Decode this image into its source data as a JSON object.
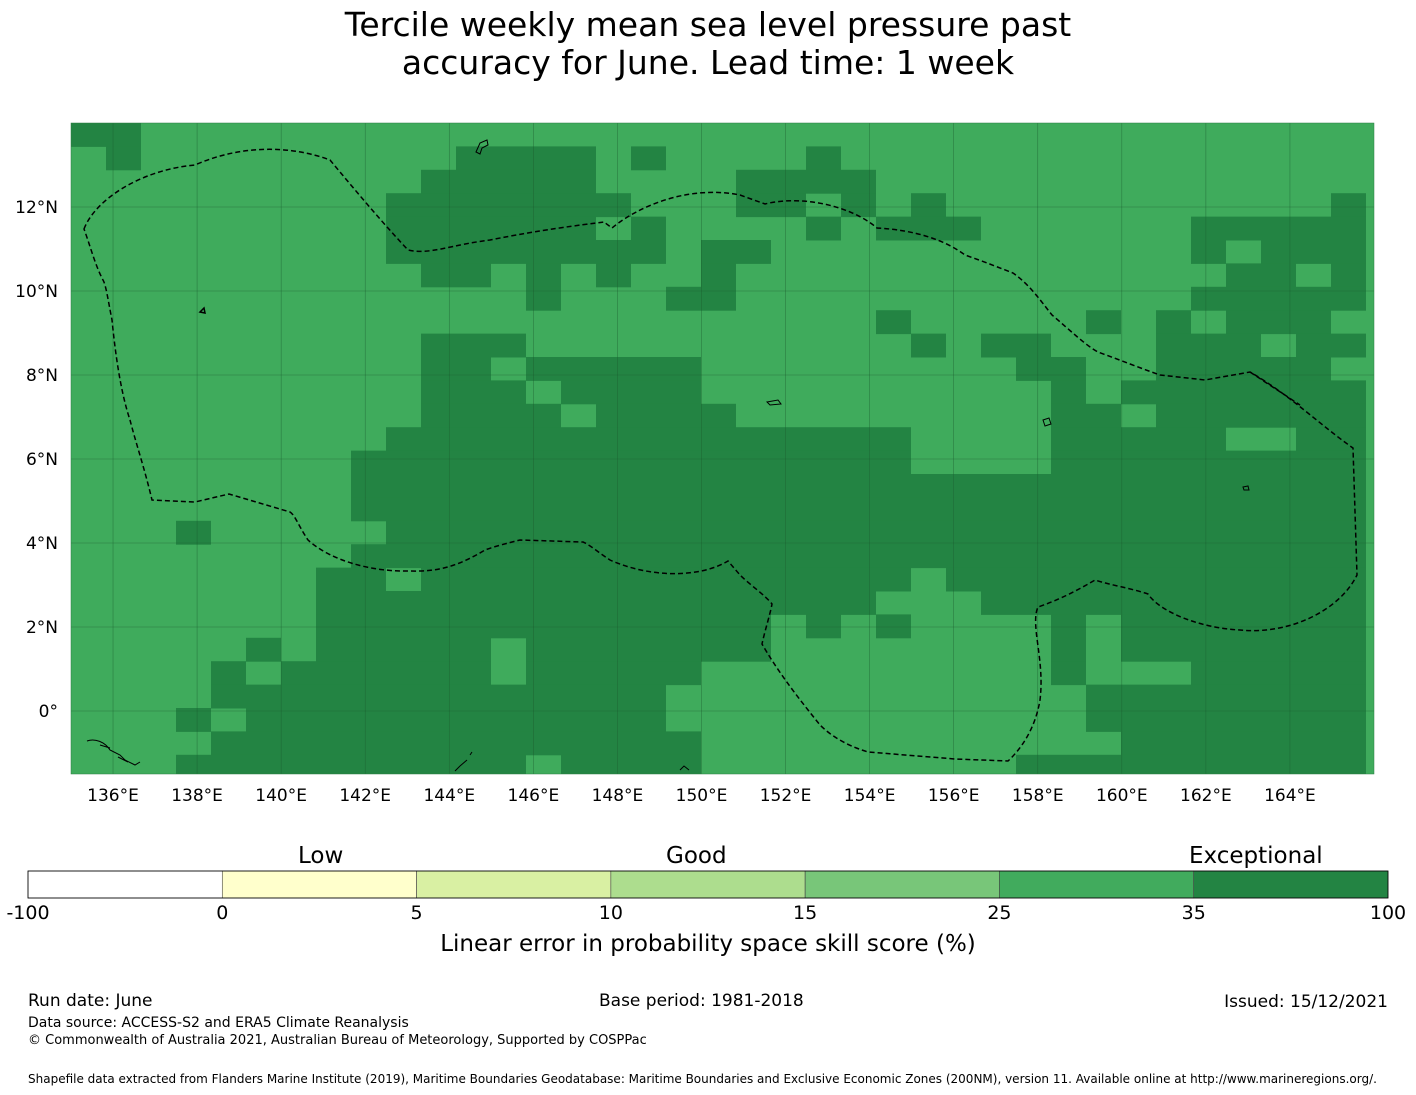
{
  "title": {
    "line1": "Tercile weekly mean sea level pressure past",
    "line2": "accuracy for June. Lead time: 1 week"
  },
  "map": {
    "lon_range": [
      135,
      166
    ],
    "lat_range": [
      -1.5,
      14
    ],
    "lon_ticks": [
      "136°E",
      "138°E",
      "140°E",
      "142°E",
      "144°E",
      "146°E",
      "148°E",
      "150°E",
      "152°E",
      "154°E",
      "156°E",
      "158°E",
      "160°E",
      "162°E",
      "164°E"
    ],
    "lat_ticks": [
      "12°N",
      "10°N",
      "8°N",
      "6°N",
      "4°N",
      "2°N",
      "0°"
    ],
    "grid": true,
    "colors": {
      "good_high": "#3fab5c",
      "exceptional": "#238443",
      "gridline": "#1a5c2e",
      "boundary": "#000000"
    }
  },
  "colorbar": {
    "category_labels": [
      "Low",
      "Good",
      "Exceptional"
    ],
    "boundaries": [
      "-100",
      "0",
      "5",
      "10",
      "15",
      "25",
      "35",
      "100"
    ],
    "colors": [
      "#ffffff",
      "#ffffcc",
      "#d9f0a3",
      "#addd8e",
      "#78c679",
      "#41ab5d",
      "#238443"
    ],
    "title": "Linear error in probability space skill score (%)"
  },
  "footer": {
    "run_date": "Run date: June",
    "base_period": "Base period: 1981-2018",
    "issued": "Issued: 15/12/2021",
    "data_source": "Data source: ACCESS-S2 and ERA5 Climate Reanalysis",
    "copyright": "© Commonwealth of Australia 2021, Australian Bureau of Meteorology, Supported by COSPPac",
    "shapefile": "Shapefile data extracted from Flanders Marine Institute (2019), Maritime Boundaries Geodatabase: Maritime Boundaries and Exclusive Economic Zones (200NM), version 11. Available online at http://www.marineregions.org/."
  }
}
